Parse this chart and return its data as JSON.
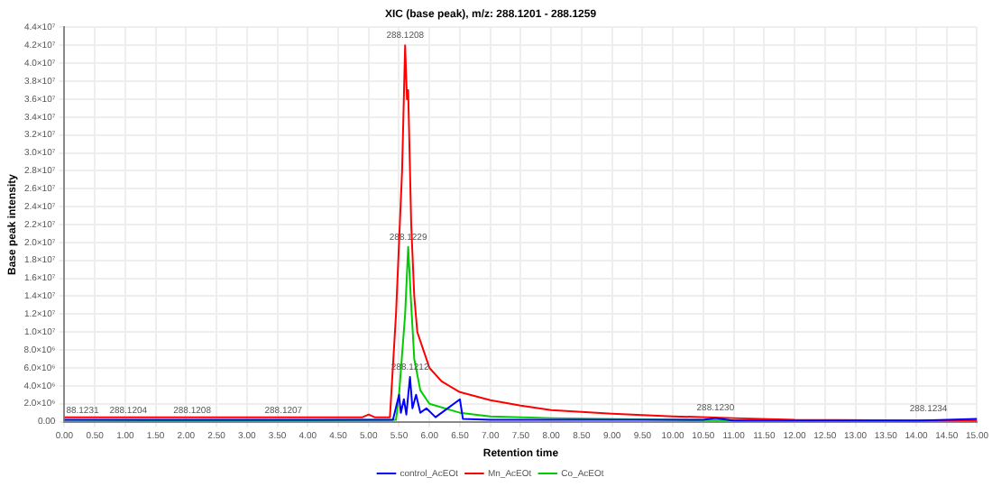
{
  "chart_data": {
    "type": "line",
    "title": "XIC (base peak), m/z: 288.1201 - 288.1259",
    "xlabel": "Retention time",
    "ylabel": "Base peak intensity",
    "xlim": [
      0,
      15
    ],
    "xticks": [
      {
        "value": 0,
        "label": "0.00"
      },
      {
        "value": 0.5,
        "label": "0.50"
      },
      {
        "value": 1,
        "label": "1.00"
      },
      {
        "value": 1.5,
        "label": "1.50"
      },
      {
        "value": 2,
        "label": "2.00"
      },
      {
        "value": 2.5,
        "label": "2.50"
      },
      {
        "value": 3,
        "label": "3.00"
      },
      {
        "value": 3.5,
        "label": "3.50"
      },
      {
        "value": 4,
        "label": "4.00"
      },
      {
        "value": 4.5,
        "label": "4.50"
      },
      {
        "value": 5,
        "label": "5.00"
      },
      {
        "value": 5.5,
        "label": "5.50"
      },
      {
        "value": 6,
        "label": "6.00"
      },
      {
        "value": 6.5,
        "label": "6.50"
      },
      {
        "value": 7,
        "label": "7.00"
      },
      {
        "value": 7.5,
        "label": "7.50"
      },
      {
        "value": 8,
        "label": "8.00"
      },
      {
        "value": 8.5,
        "label": "8.50"
      },
      {
        "value": 9,
        "label": "9.00"
      },
      {
        "value": 9.5,
        "label": "9.50"
      },
      {
        "value": 10,
        "label": "10.00"
      },
      {
        "value": 10.5,
        "label": "10.50"
      },
      {
        "value": 11,
        "label": "11.00"
      },
      {
        "value": 11.5,
        "label": "11.50"
      },
      {
        "value": 12,
        "label": "12.00"
      },
      {
        "value": 12.5,
        "label": "12.50"
      },
      {
        "value": 13,
        "label": "13.00"
      },
      {
        "value": 13.5,
        "label": "13.50"
      },
      {
        "value": 14,
        "label": "14.00"
      },
      {
        "value": 14.5,
        "label": "14.50"
      },
      {
        "value": 15,
        "label": "15.00"
      }
    ],
    "ylim": [
      0,
      44000000
    ],
    "yticks": [
      {
        "value": 0,
        "label": "0.00"
      },
      {
        "value": 2000000,
        "label": "2.0×10⁶"
      },
      {
        "value": 4000000,
        "label": "4.0×10⁶"
      },
      {
        "value": 6000000,
        "label": "6.0×10⁶"
      },
      {
        "value": 8000000,
        "label": "8.0×10⁶"
      },
      {
        "value": 10000000,
        "label": "1.0×10⁷"
      },
      {
        "value": 12000000,
        "label": "1.2×10⁷"
      },
      {
        "value": 14000000,
        "label": "1.4×10⁷"
      },
      {
        "value": 16000000,
        "label": "1.6×10⁷"
      },
      {
        "value": 18000000,
        "label": "1.8×10⁷"
      },
      {
        "value": 20000000,
        "label": "2.0×10⁷"
      },
      {
        "value": 22000000,
        "label": "2.2×10⁷"
      },
      {
        "value": 24000000,
        "label": "2.4×10⁷"
      },
      {
        "value": 26000000,
        "label": "2.6×10⁷"
      },
      {
        "value": 28000000,
        "label": "2.8×10⁷"
      },
      {
        "value": 30000000,
        "label": "3.0×10⁷"
      },
      {
        "value": 32000000,
        "label": "3.2×10⁷"
      },
      {
        "value": 34000000,
        "label": "3.4×10⁷"
      },
      {
        "value": 36000000,
        "label": "3.6×10⁷"
      },
      {
        "value": 38000000,
        "label": "3.8×10⁷"
      },
      {
        "value": 40000000,
        "label": "4.0×10⁷"
      },
      {
        "value": 42000000,
        "label": "4.2×10⁷"
      },
      {
        "value": 44000000,
        "label": "4.4×10⁷"
      }
    ],
    "grid": true,
    "legend": "bottom",
    "marker": "none",
    "line_style": "solid",
    "series": [
      {
        "name": "control_AcEOt",
        "color": "#0000ff",
        "x": [
          0,
          5,
          5.4,
          5.5,
          5.53,
          5.58,
          5.62,
          5.68,
          5.72,
          5.78,
          5.85,
          5.95,
          6.1,
          6.5,
          6.55,
          7,
          10.5,
          10.7,
          11,
          14,
          15
        ],
        "values": [
          200000,
          200000,
          200000,
          3000000,
          1000000,
          2500000,
          800000,
          5000000,
          1500000,
          3000000,
          1000000,
          1500000,
          500000,
          2500000,
          300000,
          200000,
          200000,
          400000,
          100000,
          100000,
          300000
        ]
      },
      {
        "name": "Mn_AcEOt",
        "color": "#ff0000",
        "x": [
          0,
          4.9,
          5,
          5.1,
          5.35,
          5.45,
          5.55,
          5.6,
          5.63,
          5.65,
          5.7,
          5.75,
          5.8,
          5.9,
          6,
          6.2,
          6.5,
          7,
          7.5,
          8,
          9,
          10,
          11,
          12,
          15
        ],
        "values": [
          500000,
          500000,
          800000,
          500000,
          500000,
          12000000,
          28000000,
          42000000,
          36000000,
          37000000,
          22000000,
          14000000,
          10000000,
          8000000,
          6000000,
          4500000,
          3300000,
          2400000,
          1800000,
          1300000,
          900000,
          600000,
          400000,
          200000,
          100000
        ]
      },
      {
        "name": "Co_AcEOt",
        "color": "#00cc00",
        "x": [
          0,
          5.45,
          5.5,
          5.6,
          5.65,
          5.7,
          5.75,
          5.85,
          6,
          6.5,
          7,
          8,
          10,
          15
        ],
        "values": [
          0,
          200000,
          3000000,
          12000000,
          19500000,
          13000000,
          7000000,
          3500000,
          2000000,
          1000000,
          600000,
          400000,
          200000,
          100000
        ]
      }
    ],
    "annotations": [
      {
        "text": "288.1208",
        "x": 5.6,
        "y": 42000000
      },
      {
        "text": "288.1229",
        "x": 5.65,
        "y": 19500000
      },
      {
        "text": "288.1212",
        "x": 5.68,
        "y": 5000000
      },
      {
        "text": "88.1231",
        "x": 0.1,
        "y": 100000
      },
      {
        "text": "288.1204",
        "x": 1.05,
        "y": 100000
      },
      {
        "text": "288.1208",
        "x": 2.1,
        "y": 100000
      },
      {
        "text": "288.1207",
        "x": 3.6,
        "y": 100000
      },
      {
        "text": "288.1230",
        "x": 10.7,
        "y": 400000
      },
      {
        "text": "288.1234",
        "x": 14.2,
        "y": 300000
      }
    ]
  }
}
